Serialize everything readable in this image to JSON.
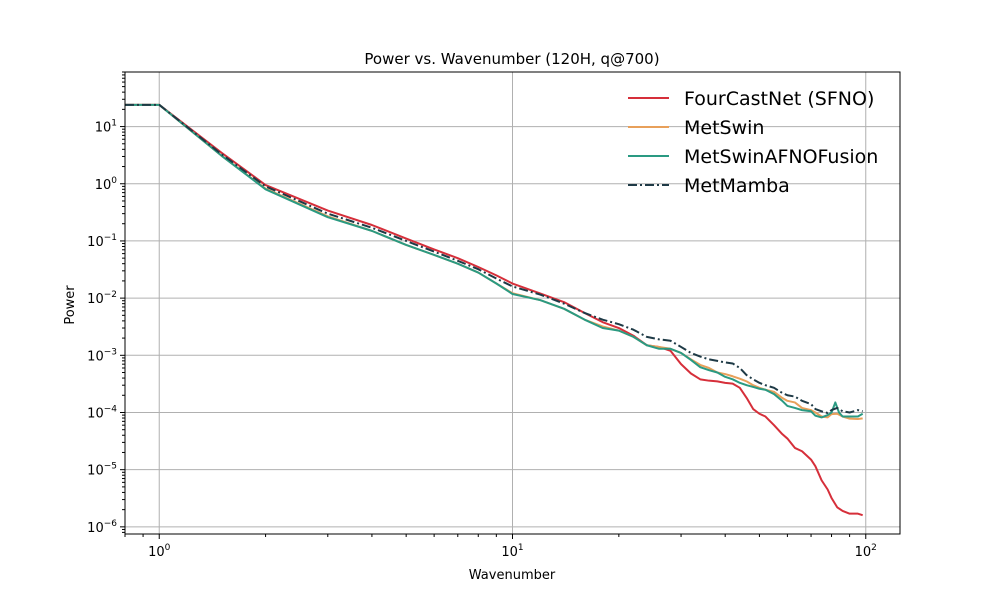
{
  "chart_data": {
    "type": "line",
    "title": "Power vs. Wavenumber (120H, q@700)",
    "xlabel": "Wavenumber",
    "ylabel": "Power",
    "xscale": "log",
    "yscale": "log",
    "xlim": [
      0.8,
      125
    ],
    "ylim": [
      7.5e-07,
      90
    ],
    "grid": true,
    "legend_position": "top-right",
    "x_ticks": [
      {
        "value": 1,
        "base": "10",
        "exp": "0"
      },
      {
        "value": 10,
        "base": "10",
        "exp": "1"
      },
      {
        "value": 100,
        "base": "10",
        "exp": "2"
      }
    ],
    "y_ticks": [
      {
        "value": 1e-06,
        "base": "10",
        "exp": "−6"
      },
      {
        "value": 1e-05,
        "base": "10",
        "exp": "−5"
      },
      {
        "value": 0.0001,
        "base": "10",
        "exp": "−4"
      },
      {
        "value": 0.001,
        "base": "10",
        "exp": "−3"
      },
      {
        "value": 0.01,
        "base": "10",
        "exp": "−2"
      },
      {
        "value": 0.1,
        "base": "10",
        "exp": "−1"
      },
      {
        "value": 1,
        "base": "10",
        "exp": "0"
      },
      {
        "value": 10,
        "base": "10",
        "exp": "1"
      }
    ],
    "series": [
      {
        "name": "FourCastNet (SFNO)",
        "color": "#d62f3a",
        "dash": "solid",
        "points": [
          [
            0.8,
            24
          ],
          [
            1,
            24
          ],
          [
            1.5,
            3.5
          ],
          [
            2,
            0.95
          ],
          [
            3,
            0.34
          ],
          [
            4,
            0.19
          ],
          [
            5,
            0.11
          ],
          [
            6,
            0.071
          ],
          [
            7,
            0.05
          ],
          [
            8,
            0.035
          ],
          [
            9,
            0.025
          ],
          [
            10,
            0.018
          ],
          [
            12,
            0.012
          ],
          [
            14,
            0.0085
          ],
          [
            16,
            0.0055
          ],
          [
            18,
            0.0038
          ],
          [
            20,
            0.003
          ],
          [
            22,
            0.0022
          ],
          [
            24,
            0.0015
          ],
          [
            26,
            0.0014
          ],
          [
            28,
            0.0012
          ],
          [
            30,
            0.0007
          ],
          [
            32,
            0.00048
          ],
          [
            34,
            0.00038
          ],
          [
            36,
            0.00036
          ],
          [
            38,
            0.00035
          ],
          [
            40,
            0.00033
          ],
          [
            42,
            0.00032
          ],
          [
            44,
            0.00027
          ],
          [
            46,
            0.00018
          ],
          [
            48,
            0.000115
          ],
          [
            50,
            9.5e-05
          ],
          [
            52,
            8.5e-05
          ],
          [
            55,
            6e-05
          ],
          [
            58,
            4.2e-05
          ],
          [
            60,
            3.5e-05
          ],
          [
            63,
            2.4e-05
          ],
          [
            66,
            2.1e-05
          ],
          [
            70,
            1.5e-05
          ],
          [
            72,
            1.15e-05
          ],
          [
            75,
            6.5e-06
          ],
          [
            78,
            4.5e-06
          ],
          [
            80,
            3.2e-06
          ],
          [
            83,
            2.2e-06
          ],
          [
            86,
            1.9e-06
          ],
          [
            90,
            1.7e-06
          ],
          [
            95,
            1.7e-06
          ],
          [
            98,
            1.6e-06
          ]
        ]
      },
      {
        "name": "MetSwin",
        "color": "#e8a05a",
        "dash": "solid",
        "points": [
          [
            0.8,
            24
          ],
          [
            1,
            24
          ],
          [
            1.5,
            3.1
          ],
          [
            2,
            0.82
          ],
          [
            3,
            0.27
          ],
          [
            4,
            0.15
          ],
          [
            5,
            0.085
          ],
          [
            6,
            0.057
          ],
          [
            7,
            0.04
          ],
          [
            8,
            0.028
          ],
          [
            9,
            0.018
          ],
          [
            10,
            0.0122
          ],
          [
            12,
            0.0092
          ],
          [
            14,
            0.0065
          ],
          [
            16,
            0.0042
          ],
          [
            18,
            0.0032
          ],
          [
            20,
            0.0027
          ],
          [
            22,
            0.0021
          ],
          [
            24,
            0.0015
          ],
          [
            26,
            0.0014
          ],
          [
            28,
            0.0013
          ],
          [
            30,
            0.0011
          ],
          [
            32,
            0.00085
          ],
          [
            34,
            0.00068
          ],
          [
            36,
            0.0006
          ],
          [
            38,
            0.0005
          ],
          [
            40,
            0.00047
          ],
          [
            42,
            0.00043
          ],
          [
            44,
            0.00039
          ],
          [
            46,
            0.00035
          ],
          [
            48,
            0.0003
          ],
          [
            50,
            0.00027
          ],
          [
            52,
            0.00025
          ],
          [
            55,
            0.00023
          ],
          [
            58,
            0.00018
          ],
          [
            60,
            0.00016
          ],
          [
            63,
            0.00015
          ],
          [
            66,
            0.00012
          ],
          [
            70,
            0.00011
          ],
          [
            72,
            0.0001
          ],
          [
            75,
            8.5e-05
          ],
          [
            78,
            8.2e-05
          ],
          [
            80,
            9.35e-05
          ],
          [
            83,
            9.5e-05
          ],
          [
            86,
            8.5e-05
          ],
          [
            90,
            7.8e-05
          ],
          [
            95,
            7.7e-05
          ],
          [
            98,
            7.9e-05
          ]
        ]
      },
      {
        "name": "MetSwinAFNOFusion",
        "color": "#2a9a82",
        "dash": "solid",
        "points": [
          [
            0.8,
            24
          ],
          [
            1,
            24
          ],
          [
            1.5,
            3.1
          ],
          [
            2,
            0.8
          ],
          [
            3,
            0.26
          ],
          [
            4,
            0.15
          ],
          [
            5,
            0.085
          ],
          [
            6,
            0.057
          ],
          [
            7,
            0.04
          ],
          [
            8,
            0.028
          ],
          [
            9,
            0.018
          ],
          [
            10,
            0.0118
          ],
          [
            12,
            0.0092
          ],
          [
            14,
            0.0065
          ],
          [
            16,
            0.0042
          ],
          [
            18,
            0.003
          ],
          [
            20,
            0.0027
          ],
          [
            22,
            0.0021
          ],
          [
            24,
            0.0015
          ],
          [
            26,
            0.0013
          ],
          [
            28,
            0.0013
          ],
          [
            30,
            0.0011
          ],
          [
            32,
            0.00083
          ],
          [
            34,
            0.00062
          ],
          [
            36,
            0.00055
          ],
          [
            38,
            0.0005
          ],
          [
            40,
            0.00042
          ],
          [
            42,
            0.00038
          ],
          [
            44,
            0.00033
          ],
          [
            46,
            0.0003
          ],
          [
            48,
            0.00028
          ],
          [
            50,
            0.00026
          ],
          [
            52,
            0.00025
          ],
          [
            55,
            0.00021
          ],
          [
            58,
            0.00016
          ],
          [
            60,
            0.00013
          ],
          [
            63,
            0.00012
          ],
          [
            66,
            0.00011
          ],
          [
            70,
            0.000105
          ],
          [
            72,
            8.8e-05
          ],
          [
            75,
            8.2e-05
          ],
          [
            78,
            9e-05
          ],
          [
            80,
            0.0001
          ],
          [
            82,
            0.00015
          ],
          [
            84,
            0.0001
          ],
          [
            86,
            8.5e-05
          ],
          [
            90,
            8.5e-05
          ],
          [
            95,
            8.5e-05
          ],
          [
            98,
            9.5e-05
          ]
        ]
      },
      {
        "name": "MetMamba",
        "color": "#1e3a46",
        "dash": "dashdot",
        "points": [
          [
            0.8,
            24
          ],
          [
            1,
            24
          ],
          [
            1.5,
            3.3
          ],
          [
            2,
            0.9
          ],
          [
            3,
            0.3
          ],
          [
            4,
            0.17
          ],
          [
            5,
            0.1
          ],
          [
            6,
            0.065
          ],
          [
            7,
            0.045
          ],
          [
            8,
            0.032
          ],
          [
            9,
            0.022
          ],
          [
            10,
            0.016
          ],
          [
            12,
            0.0115
          ],
          [
            14,
            0.008
          ],
          [
            16,
            0.0055
          ],
          [
            18,
            0.0042
          ],
          [
            20,
            0.0035
          ],
          [
            22,
            0.0028
          ],
          [
            24,
            0.0021
          ],
          [
            26,
            0.0019
          ],
          [
            28,
            0.0018
          ],
          [
            30,
            0.0014
          ],
          [
            32,
            0.0011
          ],
          [
            34,
            0.00095
          ],
          [
            36,
            0.00085
          ],
          [
            38,
            0.0008
          ],
          [
            40,
            0.00075
          ],
          [
            42,
            0.00072
          ],
          [
            44,
            0.0006
          ],
          [
            46,
            0.00045
          ],
          [
            48,
            0.00038
          ],
          [
            50,
            0.00033
          ],
          [
            52,
            0.0003
          ],
          [
            55,
            0.00027
          ],
          [
            58,
            0.00022
          ],
          [
            60,
            0.0002
          ],
          [
            63,
            0.00019
          ],
          [
            66,
            0.00016
          ],
          [
            70,
            0.00014
          ],
          [
            72,
            0.000115
          ],
          [
            75,
            0.000105
          ],
          [
            78,
            9.8e-05
          ],
          [
            80,
            0.00011
          ],
          [
            83,
            0.00012
          ],
          [
            86,
            0.000105
          ],
          [
            90,
            0.0001
          ],
          [
            95,
            0.00011
          ],
          [
            98,
            0.000105
          ]
        ]
      }
    ]
  }
}
